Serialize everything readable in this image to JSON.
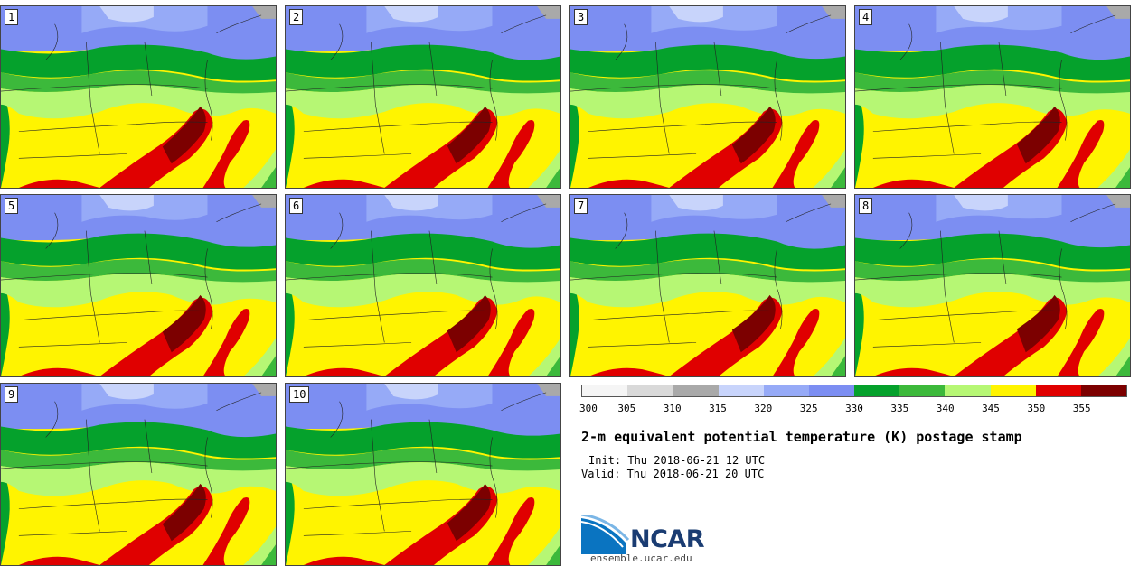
{
  "panels": [
    {
      "label": "1"
    },
    {
      "label": "2"
    },
    {
      "label": "3"
    },
    {
      "label": "4"
    },
    {
      "label": "5"
    },
    {
      "label": "6"
    },
    {
      "label": "7"
    },
    {
      "label": "8"
    },
    {
      "label": "9"
    },
    {
      "label": "10"
    }
  ],
  "colorbar": {
    "colors": [
      "#f5f5f5",
      "#d9d9d9",
      "#a9a9a9",
      "#c8d4fb",
      "#96aaf7",
      "#7c8ef2",
      "#05a12c",
      "#3cb93b",
      "#b6f774",
      "#fff400",
      "#e00000",
      "#7c0000"
    ],
    "ticks": [
      "300",
      "305",
      "310",
      "315",
      "320",
      "325",
      "330",
      "335",
      "340",
      "345",
      "350",
      "355"
    ]
  },
  "title": "2-m equivalent potential temperature (K) postage stamp",
  "init": "Init: Thu 2018-06-21 12 UTC",
  "valid": "Valid: Thu 2018-06-21 20 UTC",
  "logo": {
    "text": "NCAR",
    "url": "ensemble.ucar.edu"
  }
}
